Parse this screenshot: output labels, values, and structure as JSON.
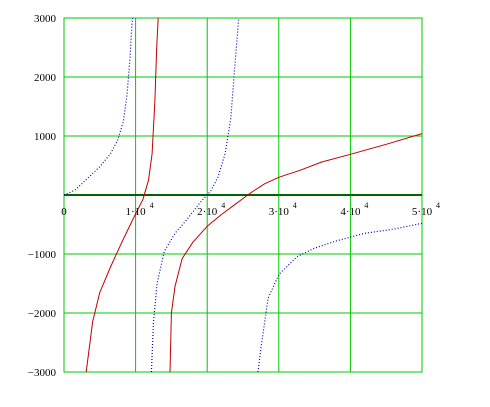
{
  "chart_data": {
    "type": "line",
    "xlim": [
      0,
      50000
    ],
    "ylim": [
      -3000,
      3000
    ],
    "grid": true,
    "colors": {
      "grid": "#00c800",
      "axis": "#006400",
      "red": "#c00000",
      "blue": "#0000c0"
    },
    "x_ticks": [
      {
        "value": 0,
        "label": "0",
        "exp": ""
      },
      {
        "value": 10000,
        "label": "1·10",
        "exp": "4"
      },
      {
        "value": 20000,
        "label": "2·10",
        "exp": "4"
      },
      {
        "value": 30000,
        "label": "3·10",
        "exp": "4"
      },
      {
        "value": 40000,
        "label": "4·10",
        "exp": "4"
      },
      {
        "value": 50000,
        "label": "5·10",
        "exp": "4"
      }
    ],
    "y_ticks": [
      {
        "value": 3000,
        "label": "3000"
      },
      {
        "value": 2000,
        "label": "2000"
      },
      {
        "value": 1000,
        "label": "1000"
      },
      {
        "value": -1000,
        "label": "−1000"
      },
      {
        "value": -2000,
        "label": "−2000"
      },
      {
        "value": -3000,
        "label": "−3000"
      }
    ],
    "series": [
      {
        "style": "solid",
        "color": "#c00000",
        "segments": [
          [
            [
              3100,
              -3000
            ],
            [
              4000,
              -2150
            ],
            [
              5000,
              -1650
            ],
            [
              6500,
              -1220
            ],
            [
              8000,
              -820
            ],
            [
              9000,
              -570
            ],
            [
              10000,
              -320
            ],
            [
              11000,
              -80
            ],
            [
              11800,
              250
            ],
            [
              12300,
              700
            ],
            [
              12700,
              1600
            ],
            [
              12950,
              2500
            ],
            [
              13150,
              3000
            ]
          ],
          [
            [
              14800,
              -3000
            ],
            [
              15000,
              -2000
            ],
            [
              15500,
              -1550
            ],
            [
              16500,
              -1080
            ],
            [
              18000,
              -800
            ],
            [
              20000,
              -530
            ],
            [
              22000,
              -330
            ],
            [
              24000,
              -150
            ],
            [
              25000,
              -60
            ],
            [
              26000,
              30
            ],
            [
              28000,
              190
            ],
            [
              30000,
              300
            ],
            [
              33000,
              420
            ],
            [
              36000,
              560
            ],
            [
              40000,
              690
            ],
            [
              45000,
              860
            ],
            [
              50000,
              1040
            ]
          ]
        ]
      },
      {
        "style": "dotted",
        "color": "#0000c0",
        "segments": [
          [
            [
              0,
              0
            ],
            [
              1500,
              80
            ],
            [
              3000,
              250
            ],
            [
              5000,
              480
            ],
            [
              6500,
              700
            ],
            [
              7500,
              930
            ],
            [
              8300,
              1250
            ],
            [
              8800,
              1700
            ],
            [
              9200,
              2300
            ],
            [
              9500,
              2900
            ],
            [
              9600,
              3000
            ]
          ],
          [
            [
              12200,
              -3000
            ],
            [
              12500,
              -2150
            ],
            [
              13000,
              -1500
            ],
            [
              14000,
              -960
            ],
            [
              15500,
              -650
            ],
            [
              17000,
              -440
            ],
            [
              19000,
              -130
            ],
            [
              20500,
              70
            ],
            [
              21500,
              300
            ],
            [
              22500,
              700
            ],
            [
              23300,
              1300
            ],
            [
              23800,
              2100
            ],
            [
              24200,
              2700
            ],
            [
              24400,
              3000
            ]
          ],
          [
            [
              27100,
              -3000
            ],
            [
              27500,
              -2600
            ],
            [
              28500,
              -1750
            ],
            [
              30000,
              -1350
            ],
            [
              32500,
              -1050
            ],
            [
              35000,
              -900
            ],
            [
              38000,
              -780
            ],
            [
              42000,
              -650
            ],
            [
              46000,
              -580
            ],
            [
              50000,
              -480
            ]
          ]
        ]
      }
    ]
  }
}
